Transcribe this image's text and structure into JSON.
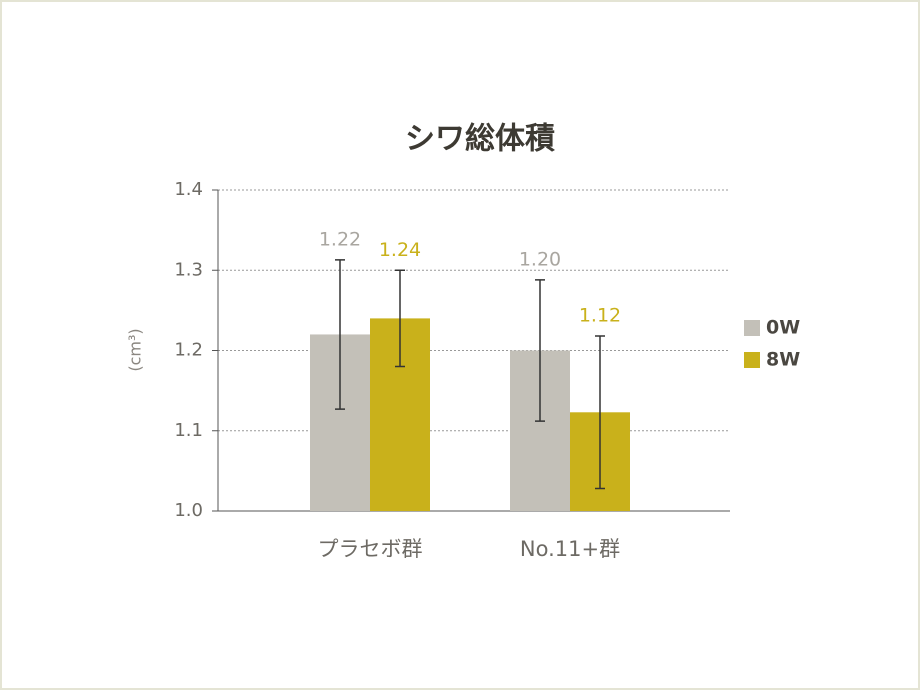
{
  "chart_data": {
    "type": "bar",
    "title": "シワ総体積",
    "y_label": "(cm³)",
    "categories": [
      "プラセボ群",
      "No.11+群"
    ],
    "series": [
      {
        "name": "0W",
        "color": "#c3c0b8",
        "label_color": "#a9a6a0",
        "values": [
          1.22,
          1.2
        ],
        "value_labels": [
          "1.22",
          "1.20"
        ],
        "errors": [
          0.093,
          0.088
        ]
      },
      {
        "name": "8W",
        "color": "#c9b11b",
        "label_color": "#c9b11b",
        "values": [
          1.24,
          1.123
        ],
        "value_labels": [
          "1.24",
          "1.12"
        ],
        "errors": [
          0.06,
          0.095
        ]
      }
    ],
    "ylim": [
      1.0,
      1.4
    ],
    "yticks": [
      {
        "value": 1.0,
        "label": "1.0"
      },
      1.1,
      {
        "value": 1.2,
        "label": "1.2"
      },
      1.3,
      1.4
    ],
    "grid": true,
    "legend": "right"
  }
}
